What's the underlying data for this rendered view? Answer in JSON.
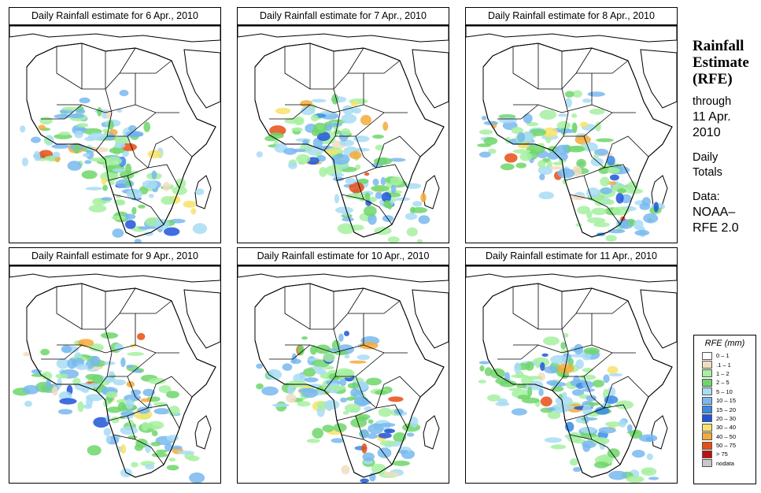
{
  "panels": [
    {
      "title": "Daily Rainfall estimate for  6 Apr., 2010"
    },
    {
      "title": "Daily Rainfall estimate for  7 Apr., 2010"
    },
    {
      "title": "Daily Rainfall estimate for  8 Apr., 2010"
    },
    {
      "title": "Daily Rainfall estimate for  9 Apr., 2010"
    },
    {
      "title": "Daily Rainfall estimate for  10 Apr., 2010"
    },
    {
      "title": "Daily Rainfall estimate for  11 Apr., 2010"
    }
  ],
  "side": {
    "line1": "Rainfall",
    "line2": "Estimate",
    "line3": "(RFE)",
    "through": "through",
    "date1": "11 Apr.",
    "date2": "2010",
    "daily": "Daily",
    "totals": "Totals",
    "data_label": "Data:",
    "source1": "NOAA–",
    "source2": "RFE 2.0"
  },
  "legend": {
    "title": "RFE (mm)",
    "items": [
      {
        "label": "0 – 1",
        "color": "#ffffff"
      },
      {
        "label": ".1 – 1",
        "color": "#f2dcc1"
      },
      {
        "label": "1 – 2",
        "color": "#a6f0a0"
      },
      {
        "label": "2 – 5",
        "color": "#6fd66a"
      },
      {
        "label": "5 – 10",
        "color": "#a8dcf5"
      },
      {
        "label": "10 – 15",
        "color": "#78b8ee"
      },
      {
        "label": "15 – 20",
        "color": "#3a8ae6"
      },
      {
        "label": "20 – 30",
        "color": "#1e55d8"
      },
      {
        "label": "30 – 40",
        "color": "#f7e36a"
      },
      {
        "label": "40 – 50",
        "color": "#f5aa3a"
      },
      {
        "label": "50 – 75",
        "color": "#e84e14"
      },
      {
        "label": "> 75",
        "color": "#c01010"
      },
      {
        "label": "nodata",
        "color": "#c8c8c8"
      }
    ]
  }
}
